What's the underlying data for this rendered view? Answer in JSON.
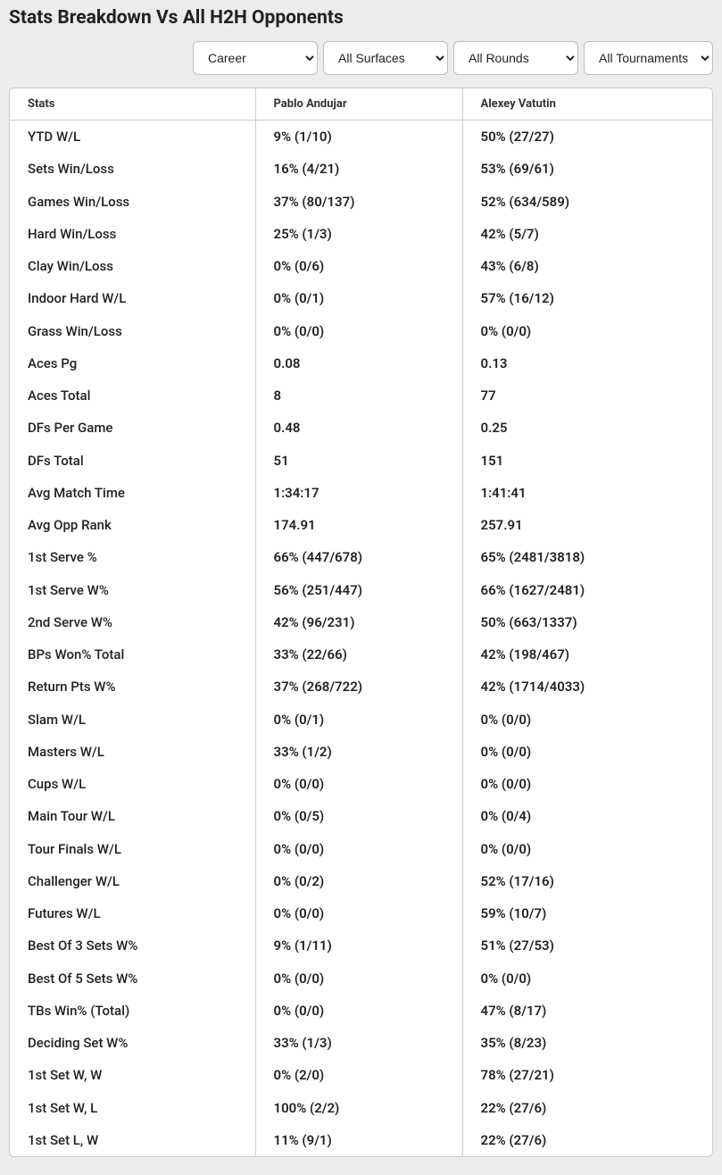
{
  "title": "Stats Breakdown Vs All H2H Opponents",
  "filters": {
    "period": {
      "selected": "Career",
      "options": [
        "Career"
      ]
    },
    "surface": {
      "selected": "All Surfaces",
      "options": [
        "All Surfaces"
      ]
    },
    "round": {
      "selected": "All Rounds",
      "options": [
        "All Rounds"
      ]
    },
    "tournament": {
      "selected": "All Tournaments",
      "options": [
        "All Tournaments"
      ]
    }
  },
  "columns": {
    "stats": "Stats",
    "player1": "Pablo Andujar",
    "player2": "Alexey Vatutin"
  },
  "rows": [
    {
      "stat": "YTD W/L",
      "p1": "9% (1/10)",
      "p2": "50% (27/27)"
    },
    {
      "stat": "Sets Win/Loss",
      "p1": "16% (4/21)",
      "p2": "53% (69/61)"
    },
    {
      "stat": "Games Win/Loss",
      "p1": "37% (80/137)",
      "p2": "52% (634/589)"
    },
    {
      "stat": "Hard Win/Loss",
      "p1": "25% (1/3)",
      "p2": "42% (5/7)"
    },
    {
      "stat": "Clay Win/Loss",
      "p1": "0% (0/6)",
      "p2": "43% (6/8)"
    },
    {
      "stat": "Indoor Hard W/L",
      "p1": "0% (0/1)",
      "p2": "57% (16/12)"
    },
    {
      "stat": "Grass Win/Loss",
      "p1": "0% (0/0)",
      "p2": "0% (0/0)"
    },
    {
      "stat": "Aces Pg",
      "p1": "0.08",
      "p2": "0.13"
    },
    {
      "stat": "Aces Total",
      "p1": "8",
      "p2": "77"
    },
    {
      "stat": "DFs Per Game",
      "p1": "0.48",
      "p2": "0.25"
    },
    {
      "stat": "DFs Total",
      "p1": "51",
      "p2": "151"
    },
    {
      "stat": "Avg Match Time",
      "p1": "1:34:17",
      "p2": "1:41:41"
    },
    {
      "stat": "Avg Opp Rank",
      "p1": "174.91",
      "p2": "257.91"
    },
    {
      "stat": "1st Serve %",
      "p1": "66% (447/678)",
      "p2": "65% (2481/3818)"
    },
    {
      "stat": "1st Serve W%",
      "p1": "56% (251/447)",
      "p2": "66% (1627/2481)"
    },
    {
      "stat": "2nd Serve W%",
      "p1": "42% (96/231)",
      "p2": "50% (663/1337)"
    },
    {
      "stat": "BPs Won% Total",
      "p1": "33% (22/66)",
      "p2": "42% (198/467)"
    },
    {
      "stat": "Return Pts W%",
      "p1": "37% (268/722)",
      "p2": "42% (1714/4033)"
    },
    {
      "stat": "Slam W/L",
      "p1": "0% (0/1)",
      "p2": "0% (0/0)"
    },
    {
      "stat": "Masters W/L",
      "p1": "33% (1/2)",
      "p2": "0% (0/0)"
    },
    {
      "stat": "Cups W/L",
      "p1": "0% (0/0)",
      "p2": "0% (0/0)"
    },
    {
      "stat": "Main Tour W/L",
      "p1": "0% (0/5)",
      "p2": "0% (0/4)"
    },
    {
      "stat": "Tour Finals W/L",
      "p1": "0% (0/0)",
      "p2": "0% (0/0)"
    },
    {
      "stat": "Challenger W/L",
      "p1": "0% (0/2)",
      "p2": "52% (17/16)"
    },
    {
      "stat": "Futures W/L",
      "p1": "0% (0/0)",
      "p2": "59% (10/7)"
    },
    {
      "stat": "Best Of 3 Sets W%",
      "p1": "9% (1/11)",
      "p2": "51% (27/53)"
    },
    {
      "stat": "Best Of 5 Sets W%",
      "p1": "0% (0/0)",
      "p2": "0% (0/0)"
    },
    {
      "stat": "TBs Win% (Total)",
      "p1": "0% (0/0)",
      "p2": "47% (8/17)"
    },
    {
      "stat": "Deciding Set W%",
      "p1": "33% (1/3)",
      "p2": "35% (8/23)"
    },
    {
      "stat": "1st Set W, W",
      "p1": "0% (2/0)",
      "p2": "78% (27/21)"
    },
    {
      "stat": "1st Set W, L",
      "p1": "100% (2/2)",
      "p2": "22% (27/6)"
    },
    {
      "stat": "1st Set L, W",
      "p1": "11% (9/1)",
      "p2": "22% (27/6)"
    }
  ],
  "colors": {
    "page_bg": "#ececec",
    "panel_bg": "#ffffff",
    "border": "#cccccc",
    "text": "#222222"
  }
}
